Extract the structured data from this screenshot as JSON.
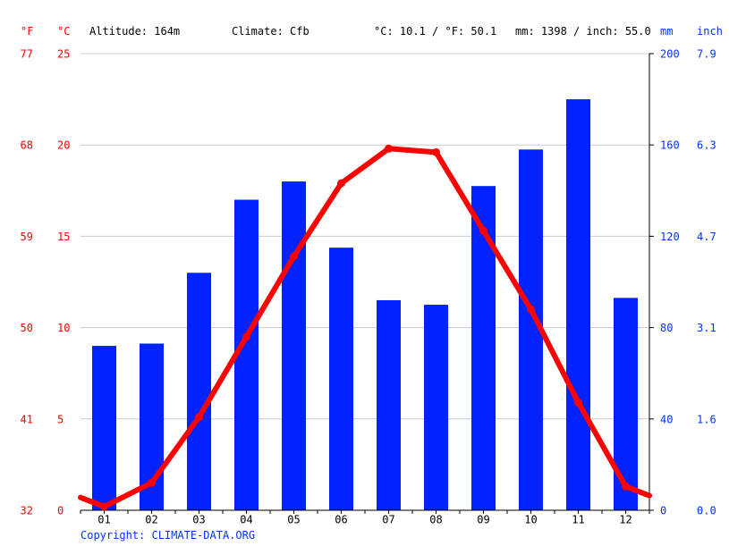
{
  "header": {
    "unit_f": "°F",
    "unit_c": "°C",
    "altitude": "Altitude: 164m",
    "climate": "Climate: Cfb",
    "avg_temp": "°C: 10.1 / °F: 50.1",
    "precip_total": "mm: 1398 / inch: 55.0",
    "unit_mm": "mm",
    "unit_inch": "inch"
  },
  "copyright": "Copyright: CLIMATE-DATA.ORG",
  "colors": {
    "temperature": "#ff0000",
    "precipitation": "#0022ff",
    "axis_blue": "#0033ff",
    "grid": "#cccccc"
  },
  "chart_data": {
    "type": "bar+line",
    "categories": [
      "01",
      "02",
      "03",
      "04",
      "05",
      "06",
      "07",
      "08",
      "09",
      "10",
      "11",
      "12"
    ],
    "series": [
      {
        "kind": "bar",
        "axis": "mm",
        "values": [
          72,
          73,
          104,
          136,
          144,
          115,
          92,
          90,
          142,
          158,
          180,
          93
        ]
      },
      {
        "kind": "line",
        "axis": "celsius",
        "values": [
          0.2,
          1.5,
          5.1,
          9.5,
          13.9,
          17.9,
          19.8,
          19.6,
          15.3,
          11.0,
          5.9,
          1.3
        ],
        "line_start": 0.7,
        "line_end": 0.8
      }
    ],
    "axes": {
      "celsius": {
        "ticks": [
          0,
          5,
          10,
          15,
          20,
          25
        ],
        "range": [
          0,
          25
        ]
      },
      "fahrenheit": {
        "ticks": [
          32,
          41,
          50,
          59,
          68,
          77
        ]
      },
      "mm": {
        "ticks": [
          0,
          40,
          80,
          120,
          160,
          200
        ],
        "range": [
          0,
          200
        ]
      },
      "inch": {
        "ticks": [
          "0.0",
          "1.6",
          "3.1",
          "4.7",
          "6.3",
          "7.9"
        ]
      }
    },
    "grid": true
  }
}
